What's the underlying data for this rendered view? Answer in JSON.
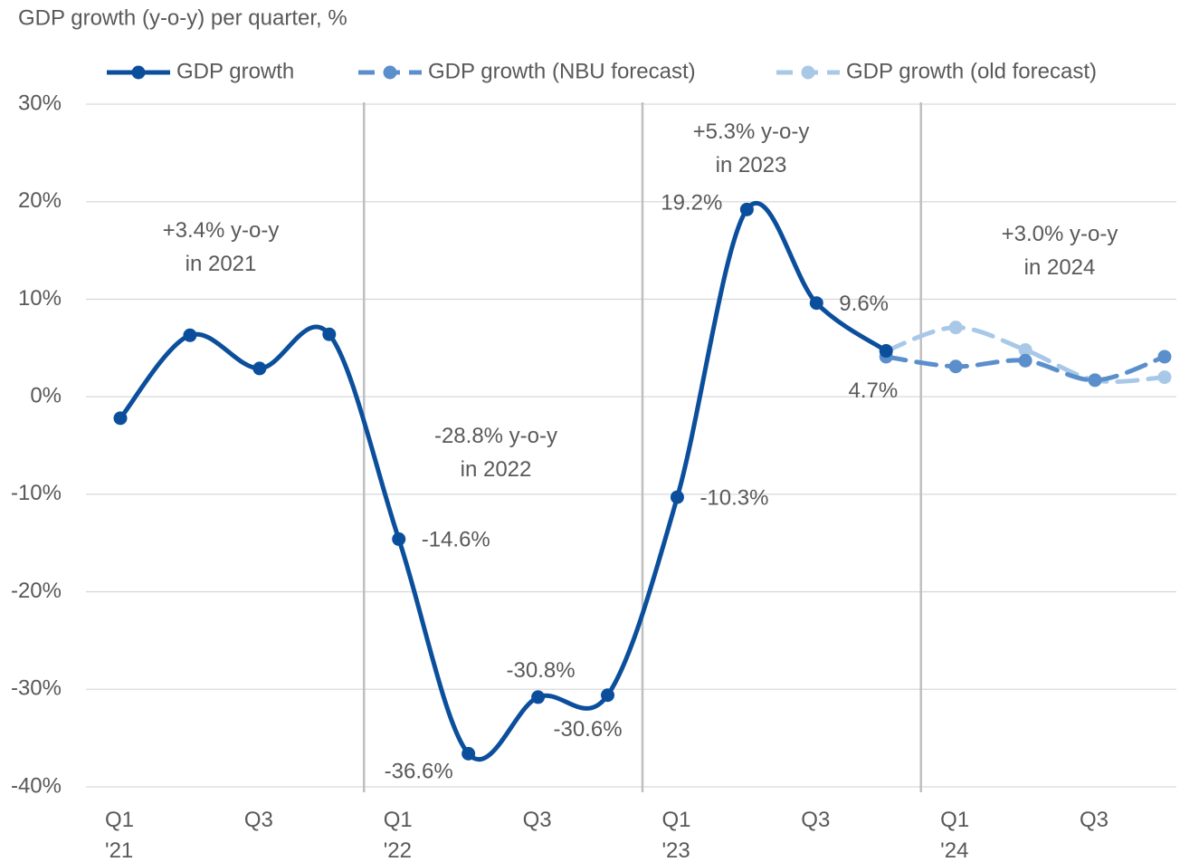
{
  "chart_data": {
    "type": "line",
    "title": "GDP growth (y-o-y) per quarter, %",
    "categories": [
      "Q1\n'21",
      null,
      "Q3",
      null,
      "Q1\n'22",
      null,
      "Q3",
      null,
      "Q1\n'23",
      null,
      "Q3",
      null,
      "Q1\n'24",
      null,
      "Q3",
      null
    ],
    "series": [
      {
        "name": "GDP growth",
        "color": "#0b4f9c",
        "dashed": false,
        "values": [
          -2.2,
          6.3,
          2.9,
          6.4,
          -14.6,
          -36.6,
          -30.8,
          -30.6,
          -10.3,
          19.2,
          9.6,
          4.7,
          null,
          null,
          null,
          null
        ],
        "value_labels": [
          null,
          null,
          null,
          null,
          "-14.6%",
          "-36.6%",
          "-30.8%",
          "-30.6%",
          "-10.3%",
          "19.2%",
          "9.6%",
          "4.7%",
          null,
          null,
          null,
          null
        ]
      },
      {
        "name": "GDP growth (NBU forecast)",
        "color": "#5b8fcc",
        "dashed": true,
        "values": [
          null,
          null,
          null,
          null,
          null,
          null,
          null,
          null,
          null,
          null,
          null,
          4.1,
          3.1,
          3.7,
          1.7,
          4.1
        ]
      },
      {
        "name": "GDP growth (old forecast)",
        "color": "#a9c8e8",
        "dashed": true,
        "values": [
          null,
          null,
          null,
          null,
          null,
          null,
          null,
          null,
          null,
          null,
          null,
          4.7,
          7.1,
          4.8,
          1.7,
          2.0
        ]
      }
    ],
    "annotations": [
      "+3.4% y-o-y\nin 2021",
      "-28.8% y-o-y\nin 2022",
      "+5.3% y-o-y\nin 2023",
      "+3.0% y-o-y\nin 2024"
    ],
    "ylim": [
      -40,
      30
    ],
    "yticks": [
      {
        "value": -40,
        "label": "-40%"
      },
      {
        "value": -30,
        "label": "-30%"
      },
      {
        "value": -20,
        "label": "-20%"
      },
      {
        "value": -10,
        "label": "-10%"
      },
      {
        "value": 0,
        "label": "0%"
      },
      {
        "value": 10,
        "label": "10%"
      },
      {
        "value": 20,
        "label": "20%"
      },
      {
        "value": 30,
        "label": "30%"
      }
    ],
    "grid": true,
    "smooth": true,
    "legend": "top"
  }
}
